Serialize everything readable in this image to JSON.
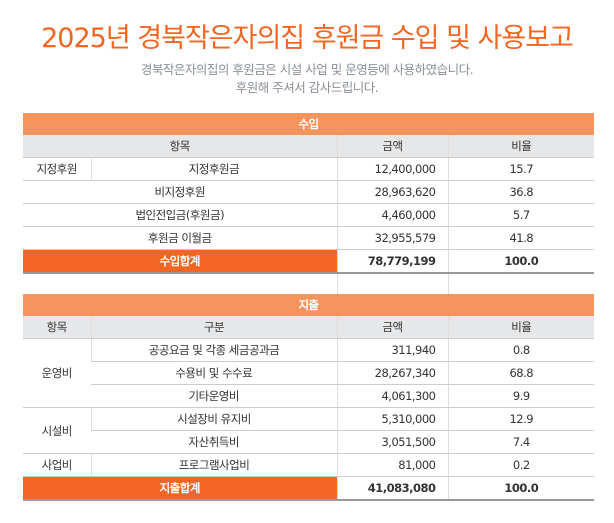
{
  "title": "2025년 경북작은자의집 후원금 수입 및 사용보고",
  "subtitle": [
    "경북작은자의집의 후원금은 시설 사업 및 운영등에 사용하였습니다.",
    "후원해 주셔서 감사드립니다."
  ],
  "income": {
    "section": "수입",
    "headers": [
      "항목",
      "금액",
      "비율"
    ],
    "rows": [
      {
        "group": "지정후원",
        "item": "지정후원금",
        "amount": "12,400,000",
        "ratio": "15.7"
      },
      {
        "item": "비지정후원",
        "amount": "28,963,620",
        "ratio": "36.8"
      },
      {
        "item": "법인전입금(후원금)",
        "amount": "4,460,000",
        "ratio": "5.7"
      },
      {
        "item": "후원금 이월금",
        "amount": "32,955,579",
        "ratio": "41.8"
      }
    ],
    "total": {
      "label": "수입합계",
      "amount": "78,779,199",
      "ratio": "100.0"
    }
  },
  "expense": {
    "section": "지출",
    "headers": [
      "항목",
      "구분",
      "금액",
      "비율"
    ],
    "groups": [
      "운영비",
      "시설비",
      "사업비"
    ],
    "rows": [
      {
        "item": "공공요금 및 각종 세금공과금",
        "amount": "311,940",
        "ratio": "0.8"
      },
      {
        "item": "수용비 및 수수료",
        "amount": "28,267,340",
        "ratio": "68.8"
      },
      {
        "item": "기타운영비",
        "amount": "4,061,300",
        "ratio": "9.9"
      },
      {
        "item": "시설장비 유지비",
        "amount": "5,310,000",
        "ratio": "12.9"
      },
      {
        "item": "자산취득비",
        "amount": "3,051,500",
        "ratio": "7.4"
      },
      {
        "item": "프로그램사업비",
        "amount": "81,000",
        "ratio": "0.2"
      }
    ],
    "total": {
      "label": "지출합계",
      "amount": "41,083,080",
      "ratio": "100.0"
    }
  }
}
